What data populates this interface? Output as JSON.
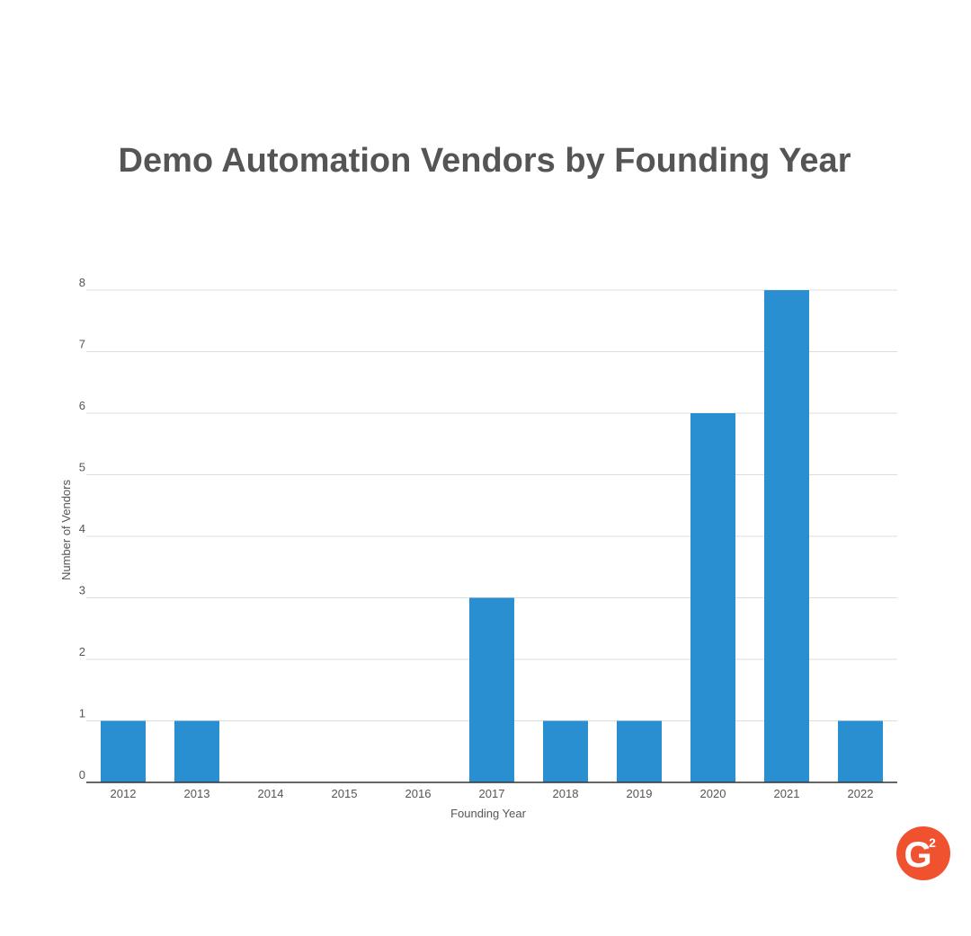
{
  "chart_data": {
    "type": "bar",
    "title": "Demo Automation Vendors by Founding Year",
    "x_label": "Founding Year",
    "y_label": "Number of Vendors",
    "categories": [
      "2012",
      "2013",
      "2014",
      "2015",
      "2016",
      "2017",
      "2018",
      "2019",
      "2020",
      "2021",
      "2022"
    ],
    "values": [
      1,
      1,
      0,
      0,
      0,
      3,
      1,
      1,
      6,
      8,
      1
    ],
    "color": "#2a8fd1",
    "ylim": [
      0,
      8
    ],
    "yticks": [
      0,
      1,
      2,
      3,
      4,
      5,
      6,
      7,
      8
    ],
    "grid": true
  },
  "logo": {
    "letter": "G",
    "superscript": "2"
  }
}
